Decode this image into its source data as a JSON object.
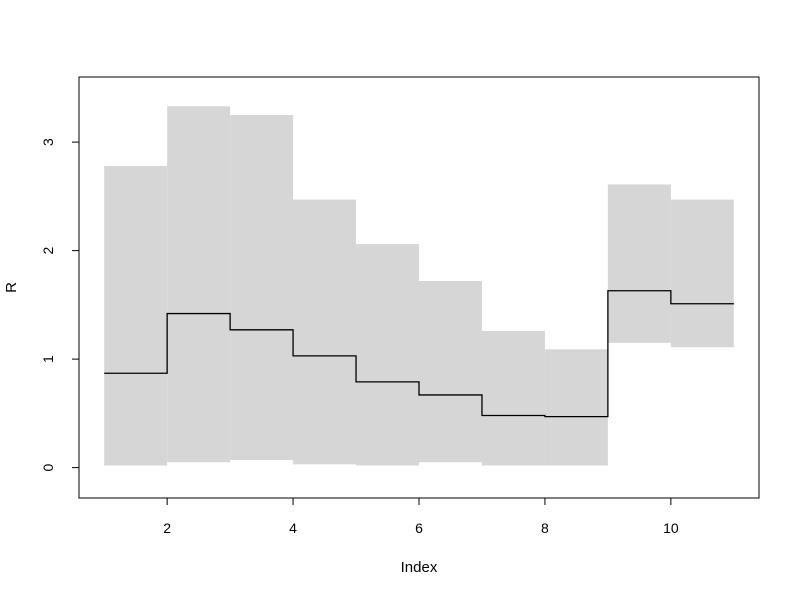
{
  "chart_data": {
    "type": "step",
    "title": "",
    "xlabel": "Index",
    "ylabel": "R",
    "xlim": [
      0.6,
      11.4
    ],
    "ylim": [
      -0.28,
      3.6
    ],
    "x_ticks": [
      2,
      4,
      6,
      8,
      10
    ],
    "x_tick_labels": [
      "2",
      "4",
      "6",
      "8",
      "10"
    ],
    "y_ticks": [
      0,
      1,
      2,
      3
    ],
    "y_tick_labels": [
      "0",
      "1",
      "2",
      "3"
    ],
    "grid": false,
    "colors": {
      "band": "#d6d6d6",
      "line": "#000000",
      "frame": "#000000"
    },
    "series": [
      {
        "x": [
          1,
          2,
          3,
          4,
          5,
          6,
          7,
          8,
          9,
          10,
          11
        ],
        "values": [
          0.87,
          1.42,
          1.27,
          1.03,
          0.79,
          0.67,
          0.48,
          0.47,
          1.63,
          1.51,
          1.51
        ]
      }
    ],
    "band": {
      "lower": [
        0.02,
        0.05,
        0.07,
        0.03,
        0.02,
        0.05,
        0.02,
        0.02,
        1.15,
        1.11
      ],
      "upper": [
        2.78,
        3.33,
        3.25,
        2.47,
        2.06,
        1.72,
        1.26,
        1.09,
        2.61,
        2.47
      ]
    }
  }
}
